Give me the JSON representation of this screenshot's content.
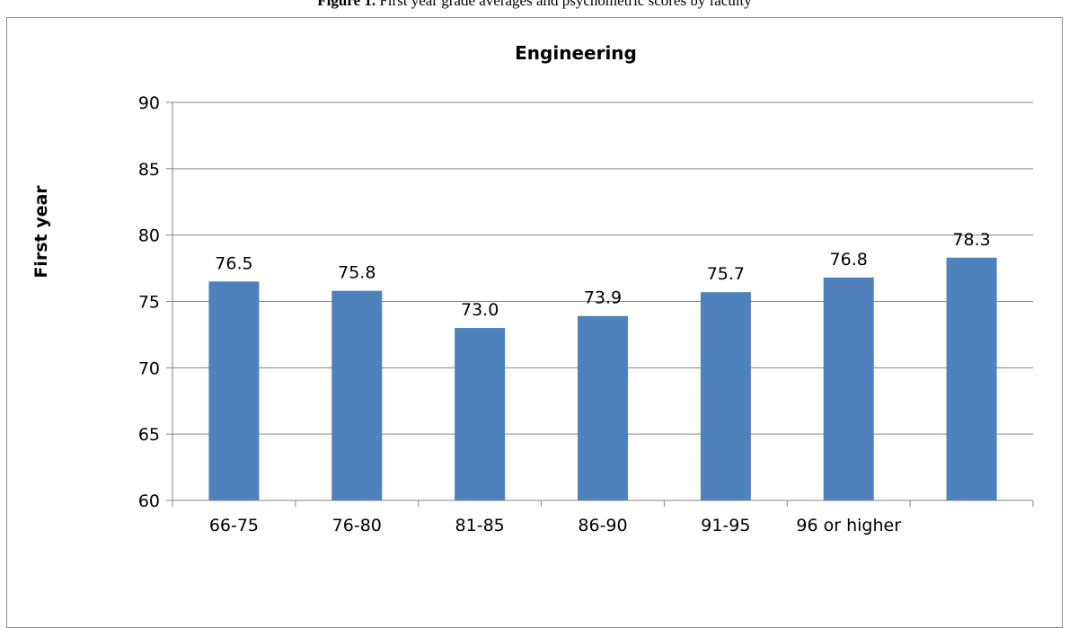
{
  "caption": {
    "label": "Figure 1.",
    "text": "First year grade averages and psychometric scores by faculty"
  },
  "colors": {
    "bar": "#4f81bd",
    "gridline": "#868686",
    "axis": "#868686"
  },
  "chart_data": {
    "type": "bar",
    "title": "Engineering",
    "xlabel": "",
    "ylabel": "First year",
    "categories": [
      "66-75",
      "76-80",
      "81-85",
      "86-90",
      "91-95",
      "96 or higher",
      ""
    ],
    "values": [
      76.5,
      75.8,
      73.0,
      73.9,
      75.7,
      76.8,
      78.3
    ],
    "data_labels": [
      "76.5",
      "75.8",
      "73.0",
      "73.9",
      "75.7",
      "76.8",
      "78.3"
    ],
    "ylim": [
      60,
      90
    ],
    "yticks": [
      60,
      65,
      70,
      75,
      80,
      85,
      90
    ],
    "ytick_labels": [
      "60",
      "65",
      "70",
      "75",
      "80",
      "85",
      "90"
    ],
    "grid": true,
    "legend": "none"
  }
}
